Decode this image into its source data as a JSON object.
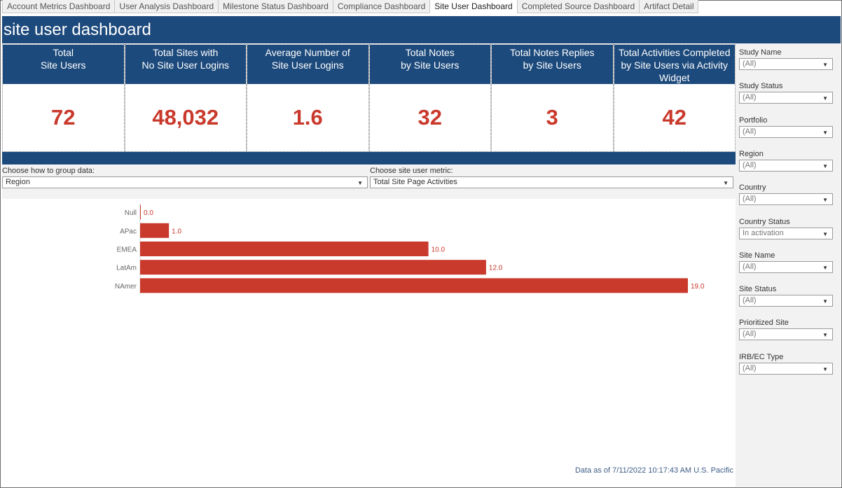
{
  "tabs": [
    {
      "label": "Account Metrics Dashboard",
      "active": false
    },
    {
      "label": "User Analysis Dashboard",
      "active": false
    },
    {
      "label": "Milestone Status Dashboard",
      "active": false
    },
    {
      "label": "Compliance Dashboard",
      "active": false
    },
    {
      "label": "Site User Dashboard",
      "active": true
    },
    {
      "label": "Completed Source Dashboard",
      "active": false
    },
    {
      "label": "Artifact Detail",
      "active": false
    }
  ],
  "header": {
    "title": "site user dashboard"
  },
  "kpis": [
    {
      "label": "Total\nSite Users",
      "value": "72"
    },
    {
      "label": "Total Sites with\nNo Site User Logins",
      "value": "48,032"
    },
    {
      "label": "Average Number of\nSite User Logins",
      "value": "1.6"
    },
    {
      "label": "Total Notes\nby Site Users",
      "value": "32"
    },
    {
      "label": "Total Notes Replies\nby Site Users",
      "value": "3"
    },
    {
      "label": "Total Activities Completed\nby Site Users via Activity\nWidget",
      "value": "42"
    }
  ],
  "params": {
    "group": {
      "label": "Choose how to group data:",
      "value": "Region"
    },
    "metric": {
      "label": "Choose site user metric:",
      "value": "Total Site Page Activities"
    }
  },
  "filters": [
    {
      "label": "Study Name",
      "value": "(All)"
    },
    {
      "label": "Study Status",
      "value": "(All)"
    },
    {
      "label": "Portfolio",
      "value": "(All)"
    },
    {
      "label": "Region",
      "value": "(All)"
    },
    {
      "label": "Country",
      "value": "(All)"
    },
    {
      "label": "Country Status",
      "value": "In activation"
    },
    {
      "label": "Site Name",
      "value": "(All)"
    },
    {
      "label": "Site Status",
      "value": "(All)"
    },
    {
      "label": "Prioritized Site",
      "value": "(All)"
    },
    {
      "label": "IRB/EC Type",
      "value": "(All)"
    }
  ],
  "footer": {
    "note": "Data as of 7/11/2022 10:17:43 AM U.S. Pacific"
  },
  "colors": {
    "brand_blue": "#1d4a7c",
    "kpi_red": "#c9392c",
    "bar_red": "#c9392c"
  },
  "chart_data": {
    "type": "bar",
    "orientation": "horizontal",
    "categories": [
      "Null",
      "APac",
      "EMEA",
      "LatAm",
      "NAmer"
    ],
    "values": [
      0.0,
      1.0,
      10.0,
      12.0,
      19.0
    ],
    "value_labels": [
      "0.0",
      "1.0",
      "10.0",
      "12.0",
      "19.0"
    ],
    "xlim": [
      0,
      19.0
    ],
    "grid": false
  }
}
